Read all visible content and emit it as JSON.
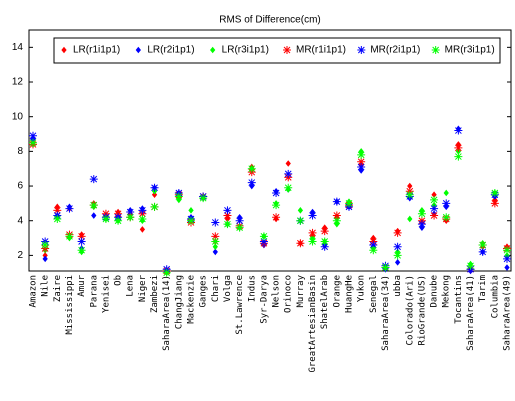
{
  "chart_data": {
    "type": "scatter",
    "title": "RMS of Difference(cm)",
    "categories": [
      "Amazon",
      "Nile",
      "Zaire",
      "Mississippi",
      "Amur",
      "Parana",
      "Yenisei",
      "Ob",
      "Lena",
      "Niger",
      "Zambezi",
      "SaharaArea(14)",
      "ChangJiang",
      "Mackenzie",
      "Ganges",
      "Chari",
      "Volga",
      "St.Lawrence",
      "Indus",
      "Syr-Darya",
      "Nelson",
      "Orinoco",
      "Murray",
      "GreatArtesianBasin",
      "ShatelArab",
      "Orange",
      "HuangHe",
      "Yukon",
      "Senegal",
      "SaharaArea(34)",
      "ubba",
      "Colorado(Ari)",
      "RioGrande(US)",
      "Danube",
      "Mekong",
      "Tocantins",
      "SaharaArea(41)",
      "Tarim",
      "Columbia",
      "SaharaArea(49)"
    ],
    "ylim": [
      1.1,
      15
    ],
    "yticks": [
      2,
      4,
      6,
      8,
      10,
      12,
      14
    ],
    "legend": "top",
    "series": [
      {
        "name": "LR(r1i1p1)",
        "color": "#ff0000",
        "marker": "dot",
        "values": [
          8.5,
          2.0,
          4.8,
          4.7,
          3.2,
          5.0,
          4.3,
          4.5,
          4.4,
          3.5,
          5.5,
          1.1,
          5.3,
          4.0,
          5.4,
          2.8,
          4.1,
          3.6,
          7.1,
          2.6,
          4.1,
          7.3,
          2.7,
          3.1,
          3.6,
          4.2,
          5.0,
          7.2,
          3.0,
          1.3,
          3.4,
          6.0,
          3.9,
          5.5,
          4.0,
          8.4,
          1.2,
          2.5,
          5.2,
          2.5
        ]
      },
      {
        "name": "LR(r2i1p1)",
        "color": "#0000ff",
        "marker": "dot",
        "values": [
          8.7,
          1.8,
          4.3,
          4.8,
          2.4,
          4.3,
          4.2,
          4.2,
          4.6,
          4.7,
          5.9,
          1.1,
          5.6,
          4.2,
          5.3,
          2.2,
          3.8,
          4.2,
          6.0,
          2.6,
          5.7,
          5.8,
          4.0,
          4.5,
          2.6,
          5.1,
          4.8,
          6.9,
          2.5,
          1.2,
          1.6,
          5.3,
          3.6,
          4.4,
          4.8,
          9.3,
          1.1,
          2.2,
          5.4,
          1.3
        ]
      },
      {
        "name": "LR(r3i1p1)",
        "color": "#00ff00",
        "marker": "dot",
        "values": [
          8.4,
          2.3,
          4.2,
          3.0,
          2.2,
          4.8,
          4.1,
          4.0,
          4.2,
          4.0,
          5.7,
          1.0,
          5.2,
          4.6,
          5.3,
          2.5,
          3.8,
          3.6,
          7.0,
          3.1,
          5.0,
          5.8,
          4.6,
          3.0,
          2.8,
          3.8,
          5.1,
          8.0,
          2.4,
          1.3,
          2.2,
          4.1,
          4.6,
          4.9,
          5.6,
          8.0,
          1.5,
          2.7,
          5.6,
          2.0
        ]
      },
      {
        "name": "MR(r1i1p1)",
        "color": "#ff0000",
        "marker": "asterisk",
        "values": [
          8.4,
          2.4,
          4.6,
          3.2,
          3.1,
          4.9,
          4.4,
          4.4,
          4.2,
          4.4,
          4.8,
          1.1,
          5.5,
          3.9,
          5.4,
          3.1,
          4.3,
          3.7,
          6.8,
          2.7,
          4.2,
          6.5,
          2.7,
          3.3,
          3.4,
          4.3,
          4.9,
          7.4,
          2.8,
          1.3,
          3.3,
          5.7,
          4.0,
          4.3,
          4.1,
          8.2,
          1.2,
          2.6,
          5.0,
          2.4
        ]
      },
      {
        "name": "MR(r2i1p1)",
        "color": "#0000ff",
        "marker": "asterisk",
        "values": [
          8.9,
          2.8,
          4.3,
          4.7,
          2.8,
          6.4,
          4.2,
          4.2,
          4.5,
          4.6,
          5.9,
          1.2,
          5.6,
          4.1,
          5.4,
          3.9,
          4.6,
          4.0,
          6.2,
          2.8,
          5.6,
          6.7,
          4.0,
          4.3,
          2.5,
          5.1,
          4.8,
          7.1,
          2.6,
          1.4,
          2.5,
          5.4,
          3.8,
          4.7,
          5.0,
          9.2,
          1.2,
          2.2,
          5.5,
          1.8
        ]
      },
      {
        "name": "MR(r3i1p1)",
        "color": "#00ff00",
        "marker": "asterisk",
        "values": [
          8.5,
          2.6,
          4.1,
          3.1,
          2.3,
          4.9,
          4.1,
          4.0,
          4.2,
          4.1,
          4.8,
          1.0,
          5.4,
          4.0,
          5.3,
          2.8,
          3.8,
          3.6,
          7.0,
          3.1,
          4.9,
          5.9,
          4.0,
          2.8,
          2.8,
          4.0,
          5.0,
          7.8,
          2.3,
          1.3,
          2.0,
          5.5,
          4.4,
          5.2,
          4.2,
          7.7,
          1.4,
          2.6,
          5.6,
          2.3
        ]
      }
    ]
  }
}
